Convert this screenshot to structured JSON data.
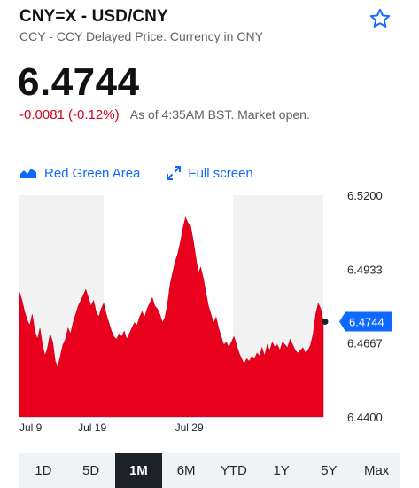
{
  "header": {
    "title": "CNY=X - USD/CNY",
    "subtitle": "CCY - CCY Delayed Price. Currency in CNY"
  },
  "quote": {
    "price": "6.4744",
    "change": "-0.0081 (-0.12%)",
    "as_of": "As of 4:35AM BST. Market open."
  },
  "toolbar": {
    "chart_type_label": "Red Green Area",
    "fullscreen_label": "Full screen"
  },
  "colors": {
    "accent": "#0f69ff",
    "negative": "#d0021b",
    "area_fill": "#e8001c",
    "band": "#f2f2f2",
    "active_range_bg": "#1d2228"
  },
  "chart_data": {
    "type": "area",
    "title": "",
    "xlabel": "",
    "ylabel": "",
    "ylim": [
      6.44,
      6.52
    ],
    "y_ticks": [
      "6.5200",
      "6.4933",
      "6.4667",
      "6.4400"
    ],
    "x_ticks": [
      "Jul 9",
      "Jul 19",
      "Jul 29"
    ],
    "current_label": "6.4744",
    "current_value": 6.4744,
    "series": [
      {
        "values": [
          6.485,
          6.482,
          6.478,
          6.475,
          6.473,
          6.477,
          6.471,
          6.468,
          6.472,
          6.466,
          6.462,
          6.465,
          6.47,
          6.467,
          6.46,
          6.458,
          6.462,
          6.466,
          6.468,
          6.472,
          6.47,
          6.474,
          6.477,
          6.48,
          6.482,
          6.484,
          6.486,
          6.483,
          6.48,
          6.482,
          6.478,
          6.476,
          6.479,
          6.481,
          6.477,
          6.474,
          6.471,
          6.469,
          6.468,
          6.47,
          6.469,
          6.471,
          6.468,
          6.47,
          6.472,
          6.474,
          6.473,
          6.476,
          6.478,
          6.476,
          6.479,
          6.481,
          6.483,
          6.48,
          6.479,
          6.477,
          6.474,
          6.476,
          6.481,
          6.488,
          6.492,
          6.496,
          6.499,
          6.503,
          6.508,
          6.512,
          6.51,
          6.509,
          6.504,
          6.498,
          6.492,
          6.494,
          6.49,
          6.485,
          6.48,
          6.477,
          6.474,
          6.476,
          6.472,
          6.469,
          6.466,
          6.467,
          6.465,
          6.467,
          6.469,
          6.466,
          6.463,
          6.461,
          6.459,
          6.461,
          6.46,
          6.462,
          6.461,
          6.463,
          6.462,
          6.465,
          6.462,
          6.466,
          6.464,
          6.467,
          6.465,
          6.466,
          6.464,
          6.467,
          6.466,
          6.465,
          6.468,
          6.466,
          6.464,
          6.463,
          6.464,
          6.465,
          6.463,
          6.464,
          6.466,
          6.47,
          6.477,
          6.481,
          6.479,
          6.4744
        ]
      }
    ]
  },
  "ranges": {
    "items": [
      "1D",
      "5D",
      "1M",
      "6M",
      "YTD",
      "1Y",
      "5Y",
      "Max"
    ],
    "active": "1M"
  }
}
